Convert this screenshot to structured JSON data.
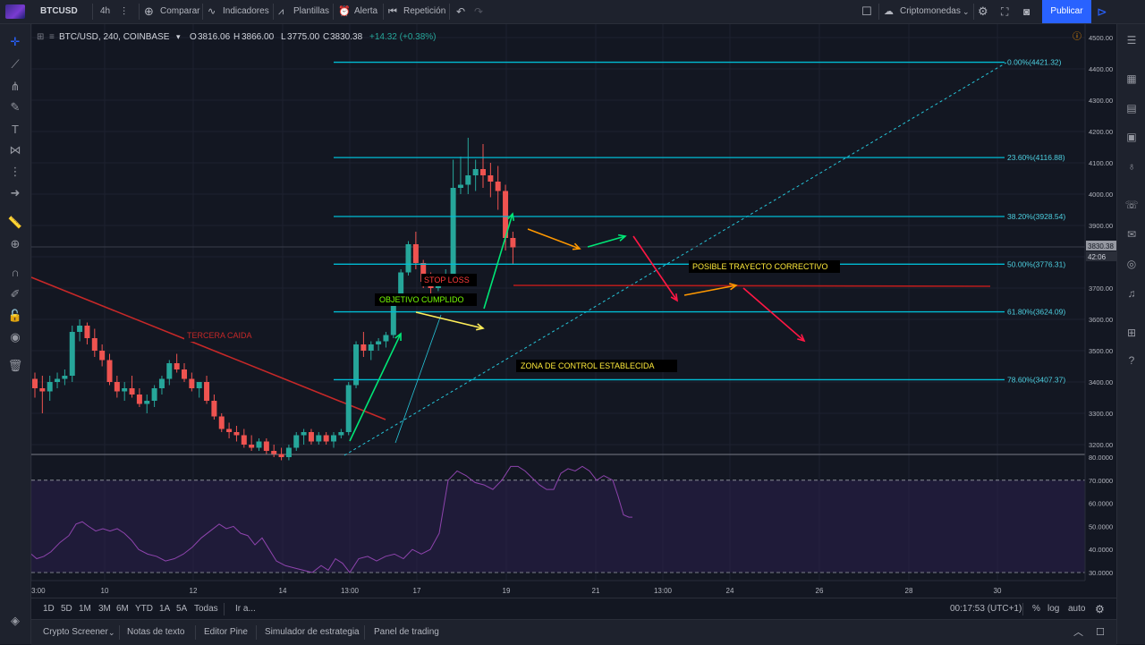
{
  "topbar": {
    "symbol": "BTCUSD",
    "interval": "4h",
    "compare": "Comparar",
    "indicators": "Indicadores",
    "templates": "Plantillas",
    "alert": "Alerta",
    "replay": "Repetición",
    "market": "Criptomonedas",
    "publish": "Publicar"
  },
  "legend": {
    "title": "BTC/USD, 240, COINBASE",
    "o_label": "O",
    "o": "3816.06",
    "h_label": "H",
    "h": "3866.00",
    "l_label": "L",
    "l": "3775.00",
    "c_label": "C",
    "c": "3830.38",
    "change": "+14.32 (+0.38%)"
  },
  "price_axis": {
    "ticks": [
      "4500.00",
      "4400.00",
      "4300.00",
      "4200.00",
      "4100.00",
      "4000.00",
      "3900.00",
      "3700.00",
      "3600.00",
      "3500.00",
      "3400.00",
      "3300.00",
      "3200.00"
    ],
    "current_price": "3830.38",
    "countdown": "42:06"
  },
  "rsi_axis": {
    "ticks": [
      "80.0000",
      "70.0000",
      "60.0000",
      "50.0000",
      "40.0000",
      "30.0000"
    ]
  },
  "time_axis": {
    "labels": [
      "3:00",
      "10",
      "12",
      "14",
      "13:00",
      "17",
      "19",
      "21",
      "13:00",
      "24",
      "26",
      "28",
      "30"
    ]
  },
  "fib_levels": [
    {
      "label": "0.00%(4421.32)",
      "price": 4421.32
    },
    {
      "label": "23.60%(4116.88)",
      "price": 4116.88
    },
    {
      "label": "38.20%(3928.54)",
      "price": 3928.54
    },
    {
      "label": "50.00%(3776.31)",
      "price": 3776.31
    },
    {
      "label": "61.80%(3624.09)",
      "price": 3624.09
    },
    {
      "label": "78.60%(3407.37)",
      "price": 3407.37
    }
  ],
  "annotations": {
    "tercera_caida": "TERCERA CAIDA",
    "stop_loss": "STOP LOSS",
    "objetivo": "OBJETIVO CUMPLIDO",
    "posible": "POSIBLE TRAYECTO CORRECTIVO",
    "zona": "ZONA DE CONTROL ESTABLECIDA"
  },
  "ranges": {
    "items": [
      "1D",
      "5D",
      "1M",
      "3M",
      "6M",
      "YTD",
      "1A",
      "5A",
      "Todas"
    ],
    "goto": "Ir a...",
    "clock": "00:17:53 (UTC+1)",
    "pct": "%",
    "log": "log",
    "auto": "auto"
  },
  "footer": {
    "tabs": [
      "Crypto Screener",
      "Notas de texto",
      "Editor Pine",
      "Simulador de estrategia",
      "Panel de trading"
    ]
  },
  "colors": {
    "bg": "#131722",
    "up": "#26a69a",
    "down": "#ef5350",
    "fib": "#00bcd4",
    "rsi": "#8e44ad"
  }
}
